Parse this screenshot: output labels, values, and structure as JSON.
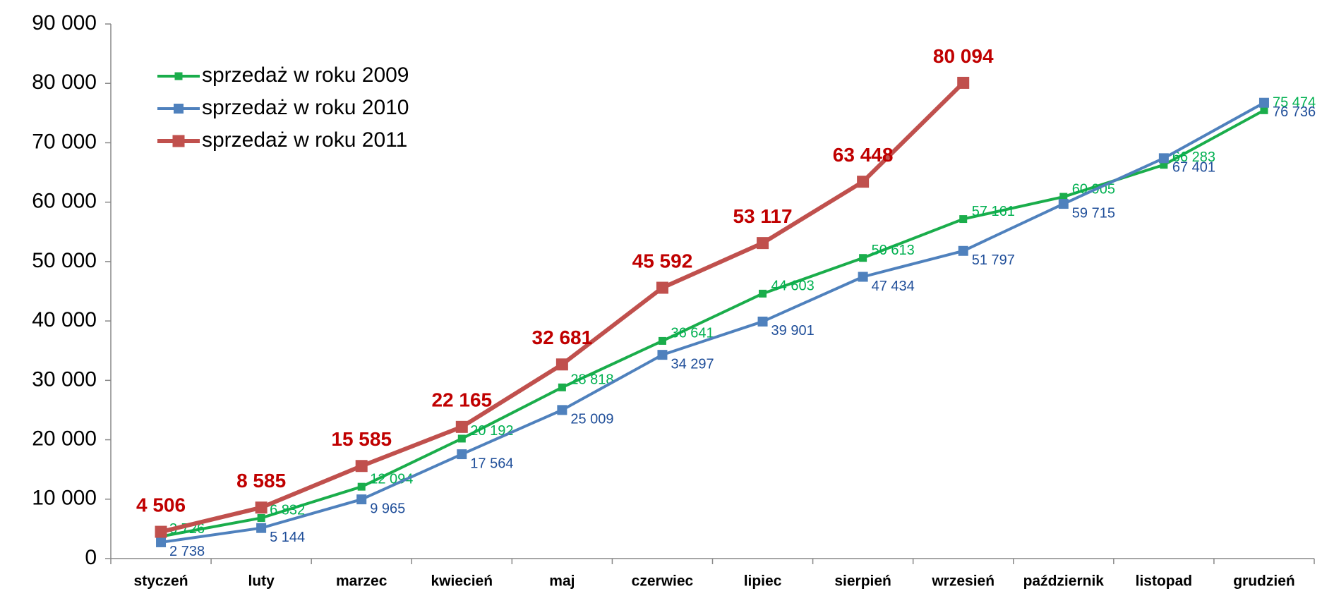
{
  "chart_data": {
    "type": "line",
    "categories": [
      "styczeń",
      "luty",
      "marzec",
      "kwiecień",
      "maj",
      "czerwiec",
      "lipiec",
      "sierpień",
      "wrzesień",
      "październik",
      "listopad",
      "grudzień"
    ],
    "series": [
      {
        "name": "sprzedaż w roku 2009",
        "color": "#1aad4b",
        "label_color": "#00b050",
        "values": [
          3726,
          6832,
          12094,
          20192,
          28818,
          36641,
          44603,
          50613,
          57161,
          60905,
          66283,
          75474
        ],
        "value_labels": [
          "3 726",
          "6 832",
          "12 094",
          "20 192",
          "28 818",
          "36 641",
          "44 603",
          "50 613",
          "57 161",
          "60 905",
          "66 283",
          "75 474"
        ]
      },
      {
        "name": "sprzedaż w roku 2010",
        "color": "#4f81bd",
        "label_color": "#1f4e99",
        "values": [
          2738,
          5144,
          9965,
          17564,
          25009,
          34297,
          39901,
          47434,
          51797,
          59715,
          67401,
          76736
        ],
        "value_labels": [
          "2 738",
          "5 144",
          "9 965",
          "17 564",
          "25 009",
          "34 297",
          "39 901",
          "47 434",
          "51 797",
          "59 715",
          "67 401",
          "76 736"
        ]
      },
      {
        "name": "sprzedaż w roku 2011",
        "color": "#c0504d",
        "label_color": "#c00000",
        "values": [
          4506,
          8585,
          15585,
          22165,
          32681,
          45592,
          53117,
          63448,
          80094,
          null,
          null,
          null
        ],
        "value_labels": [
          "4 506",
          "8 585",
          "15 585",
          "22 165",
          "32 681",
          "45 592",
          "53 117",
          "63 448",
          "80 094",
          null,
          null,
          null
        ]
      }
    ],
    "ylim": [
      0,
      90000
    ],
    "yticks": [
      {
        "value": 0,
        "label": "0"
      },
      {
        "value": 10000,
        "label": "10 000"
      },
      {
        "value": 20000,
        "label": "20 000"
      },
      {
        "value": 30000,
        "label": "30 000"
      },
      {
        "value": 40000,
        "label": "40 000"
      },
      {
        "value": 50000,
        "label": "50 000"
      },
      {
        "value": 60000,
        "label": "60 000"
      },
      {
        "value": 70000,
        "label": "70 000"
      },
      {
        "value": 80000,
        "label": "80 000"
      },
      {
        "value": 90000,
        "label": "90 000"
      }
    ],
    "legend": "top-left"
  }
}
